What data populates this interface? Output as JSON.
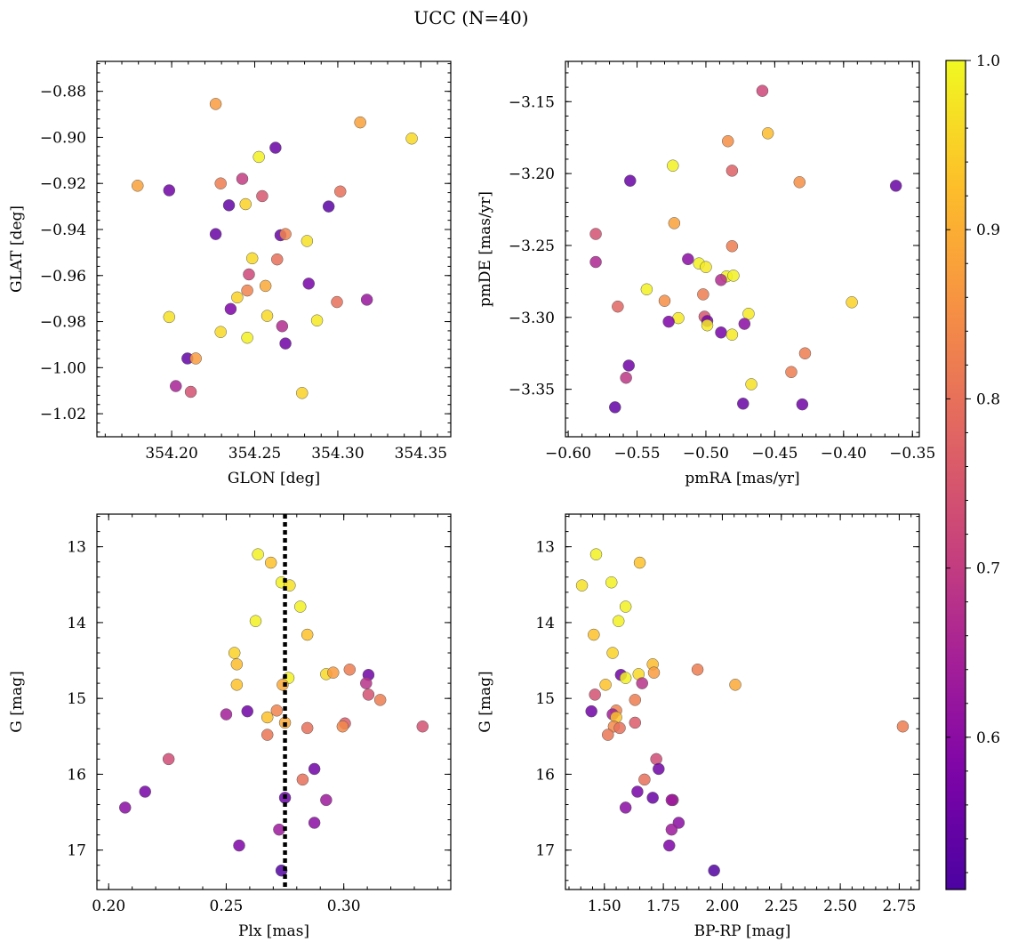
{
  "title": "UCC (N=40)",
  "colormap": {
    "name": "plasma",
    "min": 0.51,
    "max": 1.0,
    "ticks": [
      0.6,
      0.7,
      0.8,
      0.9,
      1.0
    ],
    "tick_labels": [
      "0.6",
      "0.7",
      "0.8",
      "0.9",
      "1.0"
    ]
  },
  "chart_data": [
    {
      "type": "scatter",
      "xlabel": "GLON [deg]",
      "ylabel": "GLAT [deg]",
      "xlim": [
        354.155,
        354.368
      ],
      "ylim": [
        -1.03,
        -0.867
      ],
      "y_inverted": false,
      "xticks": [
        354.2,
        354.25,
        354.3,
        354.35
      ],
      "xtick_labels": [
        "354.20",
        "354.25",
        "354.30",
        "354.35"
      ],
      "yticks": [
        -0.88,
        -0.9,
        -0.92,
        -0.94,
        -0.96,
        -0.98,
        -1.0,
        -1.02
      ],
      "ytick_labels": [
        "−0.88",
        "−0.90",
        "−0.92",
        "−0.94",
        "−0.96",
        "−0.98",
        "−1.00",
        "−1.02"
      ],
      "points": [
        {
          "x": 354.2265,
          "y": -0.8855,
          "c": 0.87
        },
        {
          "x": 354.3135,
          "y": -0.8935,
          "c": 0.88
        },
        {
          "x": 354.3445,
          "y": -0.9005,
          "c": 0.96
        },
        {
          "x": 354.2525,
          "y": -0.9085,
          "c": 0.99
        },
        {
          "x": 354.2625,
          "y": -0.9045,
          "c": 0.55
        },
        {
          "x": 354.1795,
          "y": -0.921,
          "c": 0.88
        },
        {
          "x": 354.1985,
          "y": -0.923,
          "c": 0.56
        },
        {
          "x": 354.2295,
          "y": -0.92,
          "c": 0.82
        },
        {
          "x": 354.2425,
          "y": -0.918,
          "c": 0.7
        },
        {
          "x": 354.2545,
          "y": -0.9255,
          "c": 0.75
        },
        {
          "x": 354.2345,
          "y": -0.9295,
          "c": 0.54
        },
        {
          "x": 354.2445,
          "y": -0.929,
          "c": 0.95
        },
        {
          "x": 354.3015,
          "y": -0.9235,
          "c": 0.8
        },
        {
          "x": 354.2945,
          "y": -0.93,
          "c": 0.53
        },
        {
          "x": 354.2265,
          "y": -0.942,
          "c": 0.55
        },
        {
          "x": 354.2655,
          "y": -0.9425,
          "c": 0.55
        },
        {
          "x": 354.2685,
          "y": -0.942,
          "c": 0.83
        },
        {
          "x": 354.2815,
          "y": -0.945,
          "c": 0.97
        },
        {
          "x": 354.2485,
          "y": -0.9525,
          "c": 0.96
        },
        {
          "x": 354.2635,
          "y": -0.953,
          "c": 0.8
        },
        {
          "x": 354.2465,
          "y": -0.9595,
          "c": 0.72
        },
        {
          "x": 354.2395,
          "y": -0.9695,
          "c": 0.95
        },
        {
          "x": 354.2455,
          "y": -0.9665,
          "c": 0.83
        },
        {
          "x": 354.2565,
          "y": -0.9645,
          "c": 0.89
        },
        {
          "x": 354.2825,
          "y": -0.9635,
          "c": 0.57
        },
        {
          "x": 354.2355,
          "y": -0.9745,
          "c": 0.58
        },
        {
          "x": 354.2995,
          "y": -0.9715,
          "c": 0.8
        },
        {
          "x": 354.3175,
          "y": -0.9705,
          "c": 0.62
        },
        {
          "x": 354.1985,
          "y": -0.978,
          "c": 0.97
        },
        {
          "x": 354.2575,
          "y": -0.9775,
          "c": 0.96
        },
        {
          "x": 354.2665,
          "y": -0.982,
          "c": 0.67
        },
        {
          "x": 354.2875,
          "y": -0.9795,
          "c": 0.98
        },
        {
          "x": 354.2295,
          "y": -0.9845,
          "c": 0.96
        },
        {
          "x": 354.2455,
          "y": -0.987,
          "c": 0.99
        },
        {
          "x": 354.2685,
          "y": -0.9895,
          "c": 0.56
        },
        {
          "x": 354.2095,
          "y": -0.996,
          "c": 0.54
        },
        {
          "x": 354.2145,
          "y": -0.996,
          "c": 0.87
        },
        {
          "x": 354.2025,
          "y": -1.008,
          "c": 0.65
        },
        {
          "x": 354.2115,
          "y": -1.0105,
          "c": 0.74
        },
        {
          "x": 354.2785,
          "y": -1.011,
          "c": 0.95
        }
      ]
    },
    {
      "type": "scatter",
      "xlabel": "pmRA [mas/yr]",
      "ylabel": "pmDE [mas/yr]",
      "xlim": [
        -0.602,
        -0.345
      ],
      "ylim": [
        -3.383,
        -3.122
      ],
      "y_inverted": false,
      "xticks": [
        -0.6,
        -0.55,
        -0.5,
        -0.45,
        -0.4,
        -0.35
      ],
      "xtick_labels": [
        "−0.60",
        "−0.55",
        "−0.50",
        "−0.45",
        "−0.40",
        "−0.35"
      ],
      "yticks": [
        -3.15,
        -3.2,
        -3.25,
        -3.3,
        -3.35
      ],
      "ytick_labels": [
        "−3.15",
        "−3.20",
        "−3.25",
        "−3.30",
        "−3.35"
      ],
      "points": [
        {
          "x": -0.459,
          "y": -3.1425,
          "c": 0.72
        },
        {
          "x": -0.484,
          "y": -3.1775,
          "c": 0.85
        },
        {
          "x": -0.455,
          "y": -3.172,
          "c": 0.92
        },
        {
          "x": -0.524,
          "y": -3.1945,
          "c": 0.99
        },
        {
          "x": -0.481,
          "y": -3.198,
          "c": 0.77
        },
        {
          "x": -0.555,
          "y": -3.205,
          "c": 0.55
        },
        {
          "x": -0.432,
          "y": -3.206,
          "c": 0.85
        },
        {
          "x": -0.362,
          "y": -3.2085,
          "c": 0.55
        },
        {
          "x": -0.523,
          "y": -3.2345,
          "c": 0.88
        },
        {
          "x": -0.58,
          "y": -3.242,
          "c": 0.74
        },
        {
          "x": -0.481,
          "y": -3.2505,
          "c": 0.82
        },
        {
          "x": -0.58,
          "y": -3.2615,
          "c": 0.66
        },
        {
          "x": -0.513,
          "y": -3.2595,
          "c": 0.6
        },
        {
          "x": -0.505,
          "y": -3.2625,
          "c": 0.99
        },
        {
          "x": -0.5,
          "y": -3.265,
          "c": 0.98
        },
        {
          "x": -0.485,
          "y": -3.2715,
          "c": 0.99
        },
        {
          "x": -0.48,
          "y": -3.271,
          "c": 0.99
        },
        {
          "x": -0.543,
          "y": -3.2805,
          "c": 0.99
        },
        {
          "x": -0.502,
          "y": -3.284,
          "c": 0.82
        },
        {
          "x": -0.489,
          "y": -3.274,
          "c": 0.67
        },
        {
          "x": -0.53,
          "y": -3.2885,
          "c": 0.85
        },
        {
          "x": -0.564,
          "y": -3.2925,
          "c": 0.78
        },
        {
          "x": -0.394,
          "y": -3.2895,
          "c": 0.95
        },
        {
          "x": -0.52,
          "y": -3.3005,
          "c": 0.98
        },
        {
          "x": -0.501,
          "y": -3.2995,
          "c": 0.75
        },
        {
          "x": -0.499,
          "y": -3.3025,
          "c": 0.57
        },
        {
          "x": -0.527,
          "y": -3.303,
          "c": 0.58
        },
        {
          "x": -0.499,
          "y": -3.3055,
          "c": 0.98
        },
        {
          "x": -0.469,
          "y": -3.2975,
          "c": 0.98
        },
        {
          "x": -0.472,
          "y": -3.3045,
          "c": 0.6
        },
        {
          "x": -0.489,
          "y": -3.3105,
          "c": 0.57
        },
        {
          "x": -0.481,
          "y": -3.312,
          "c": 0.98
        },
        {
          "x": -0.428,
          "y": -3.325,
          "c": 0.82
        },
        {
          "x": -0.556,
          "y": -3.3335,
          "c": 0.56
        },
        {
          "x": -0.438,
          "y": -3.338,
          "c": 0.82
        },
        {
          "x": -0.558,
          "y": -3.342,
          "c": 0.69
        },
        {
          "x": -0.467,
          "y": -3.3465,
          "c": 0.97
        },
        {
          "x": -0.566,
          "y": -3.3625,
          "c": 0.54
        },
        {
          "x": -0.473,
          "y": -3.36,
          "c": 0.55
        },
        {
          "x": -0.43,
          "y": -3.3605,
          "c": 0.56
        }
      ]
    },
    {
      "type": "scatter",
      "xlabel": "Plx [mas]",
      "ylabel": "G [mag]",
      "xlim": [
        0.195,
        0.3455
      ],
      "ylim": [
        17.52,
        12.57
      ],
      "y_inverted": true,
      "vline": 0.275,
      "xticks": [
        0.2,
        0.25,
        0.3
      ],
      "xtick_labels": [
        "0.20",
        "0.25",
        "0.30"
      ],
      "yticks": [
        13,
        14,
        15,
        16,
        17
      ],
      "ytick_labels": [
        "13",
        "14",
        "15",
        "16",
        "17"
      ],
      "points": [
        {
          "x": 0.2635,
          "y": 13.1,
          "c": 0.99
        },
        {
          "x": 0.269,
          "y": 13.21,
          "c": 0.93
        },
        {
          "x": 0.2735,
          "y": 13.47,
          "c": 0.99
        },
        {
          "x": 0.277,
          "y": 13.51,
          "c": 0.97
        },
        {
          "x": 0.2815,
          "y": 13.79,
          "c": 0.99
        },
        {
          "x": 0.2625,
          "y": 13.98,
          "c": 0.99
        },
        {
          "x": 0.2845,
          "y": 14.16,
          "c": 0.93
        },
        {
          "x": 0.2535,
          "y": 14.4,
          "c": 0.95
        },
        {
          "x": 0.2545,
          "y": 14.55,
          "c": 0.92
        },
        {
          "x": 0.2925,
          "y": 14.68,
          "c": 0.96
        },
        {
          "x": 0.2955,
          "y": 14.66,
          "c": 0.87
        },
        {
          "x": 0.3025,
          "y": 14.62,
          "c": 0.82
        },
        {
          "x": 0.2765,
          "y": 14.73,
          "c": 0.99
        },
        {
          "x": 0.3105,
          "y": 14.69,
          "c": 0.56
        },
        {
          "x": 0.2545,
          "y": 14.82,
          "c": 0.93
        },
        {
          "x": 0.274,
          "y": 14.82,
          "c": 0.89
        },
        {
          "x": 0.3095,
          "y": 14.8,
          "c": 0.68
        },
        {
          "x": 0.3105,
          "y": 14.95,
          "c": 0.74
        },
        {
          "x": 0.3155,
          "y": 15.02,
          "c": 0.82
        },
        {
          "x": 0.259,
          "y": 15.17,
          "c": 0.56
        },
        {
          "x": 0.2715,
          "y": 15.16,
          "c": 0.83
        },
        {
          "x": 0.25,
          "y": 15.21,
          "c": 0.64
        },
        {
          "x": 0.2675,
          "y": 15.25,
          "c": 0.93
        },
        {
          "x": 0.275,
          "y": 15.32,
          "c": 0.89
        },
        {
          "x": 0.3005,
          "y": 15.33,
          "c": 0.76
        },
        {
          "x": 0.2995,
          "y": 15.37,
          "c": 0.84
        },
        {
          "x": 0.2845,
          "y": 15.39,
          "c": 0.8
        },
        {
          "x": 0.3335,
          "y": 15.37,
          "c": 0.74
        },
        {
          "x": 0.2675,
          "y": 15.48,
          "c": 0.81
        },
        {
          "x": 0.2255,
          "y": 15.8,
          "c": 0.73
        },
        {
          "x": 0.2875,
          "y": 15.93,
          "c": 0.56
        },
        {
          "x": 0.2825,
          "y": 16.07,
          "c": 0.8
        },
        {
          "x": 0.2155,
          "y": 16.23,
          "c": 0.57
        },
        {
          "x": 0.275,
          "y": 16.31,
          "c": 0.55
        },
        {
          "x": 0.2925,
          "y": 16.34,
          "c": 0.63
        },
        {
          "x": 0.207,
          "y": 16.44,
          "c": 0.6
        },
        {
          "x": 0.2875,
          "y": 16.64,
          "c": 0.6
        },
        {
          "x": 0.2725,
          "y": 16.73,
          "c": 0.63
        },
        {
          "x": 0.2555,
          "y": 16.94,
          "c": 0.58
        },
        {
          "x": 0.2735,
          "y": 17.27,
          "c": 0.52
        }
      ]
    },
    {
      "type": "scatter",
      "xlabel": "BP-RP [mag]",
      "ylabel": "G [mag]",
      "xlim": [
        1.335,
        2.835
      ],
      "ylim": [
        17.52,
        12.57
      ],
      "y_inverted": true,
      "xticks": [
        1.5,
        1.75,
        2.0,
        2.25,
        2.5,
        2.75
      ],
      "xtick_labels": [
        "1.50",
        "1.75",
        "2.00",
        "2.25",
        "2.50",
        "2.75"
      ],
      "yticks": [
        13,
        14,
        15,
        16,
        17
      ],
      "ytick_labels": [
        "13",
        "14",
        "15",
        "16",
        "17"
      ],
      "points": [
        {
          "x": 1.465,
          "y": 13.1,
          "c": 0.99
        },
        {
          "x": 1.65,
          "y": 13.21,
          "c": 0.93
        },
        {
          "x": 1.405,
          "y": 13.51,
          "c": 0.97
        },
        {
          "x": 1.53,
          "y": 13.47,
          "c": 0.99
        },
        {
          "x": 1.59,
          "y": 13.79,
          "c": 0.99
        },
        {
          "x": 1.56,
          "y": 13.98,
          "c": 0.99
        },
        {
          "x": 1.455,
          "y": 14.16,
          "c": 0.93
        },
        {
          "x": 1.535,
          "y": 14.4,
          "c": 0.95
        },
        {
          "x": 1.705,
          "y": 14.55,
          "c": 0.92
        },
        {
          "x": 1.895,
          "y": 14.62,
          "c": 0.82
        },
        {
          "x": 1.71,
          "y": 14.66,
          "c": 0.87
        },
        {
          "x": 1.645,
          "y": 14.68,
          "c": 0.96
        },
        {
          "x": 1.57,
          "y": 14.69,
          "c": 0.56
        },
        {
          "x": 1.59,
          "y": 14.73,
          "c": 0.99
        },
        {
          "x": 1.66,
          "y": 14.8,
          "c": 0.68
        },
        {
          "x": 1.505,
          "y": 14.82,
          "c": 0.93
        },
        {
          "x": 2.055,
          "y": 14.82,
          "c": 0.89
        },
        {
          "x": 1.46,
          "y": 14.95,
          "c": 0.74
        },
        {
          "x": 1.63,
          "y": 15.02,
          "c": 0.82
        },
        {
          "x": 1.445,
          "y": 15.17,
          "c": 0.56
        },
        {
          "x": 1.55,
          "y": 15.16,
          "c": 0.83
        },
        {
          "x": 1.535,
          "y": 15.21,
          "c": 0.64
        },
        {
          "x": 1.55,
          "y": 15.25,
          "c": 0.93
        },
        {
          "x": 1.63,
          "y": 15.32,
          "c": 0.76
        },
        {
          "x": 1.54,
          "y": 15.37,
          "c": 0.84
        },
        {
          "x": 1.565,
          "y": 15.39,
          "c": 0.8
        },
        {
          "x": 2.765,
          "y": 15.37,
          "c": 0.82
        },
        {
          "x": 1.515,
          "y": 15.48,
          "c": 0.81
        },
        {
          "x": 1.72,
          "y": 15.8,
          "c": 0.73
        },
        {
          "x": 1.73,
          "y": 15.93,
          "c": 0.56
        },
        {
          "x": 1.67,
          "y": 16.07,
          "c": 0.8
        },
        {
          "x": 1.64,
          "y": 16.23,
          "c": 0.57
        },
        {
          "x": 1.705,
          "y": 16.31,
          "c": 0.55
        },
        {
          "x": 1.79,
          "y": 16.34,
          "c": 0.63
        },
        {
          "x": 1.59,
          "y": 16.44,
          "c": 0.6
        },
        {
          "x": 1.815,
          "y": 16.64,
          "c": 0.6
        },
        {
          "x": 1.785,
          "y": 16.73,
          "c": 0.63
        },
        {
          "x": 1.775,
          "y": 16.94,
          "c": 0.58
        },
        {
          "x": 1.965,
          "y": 17.27,
          "c": 0.52
        },
        {
          "x": 1.785,
          "y": 16.34,
          "c": 0.63
        }
      ]
    }
  ]
}
